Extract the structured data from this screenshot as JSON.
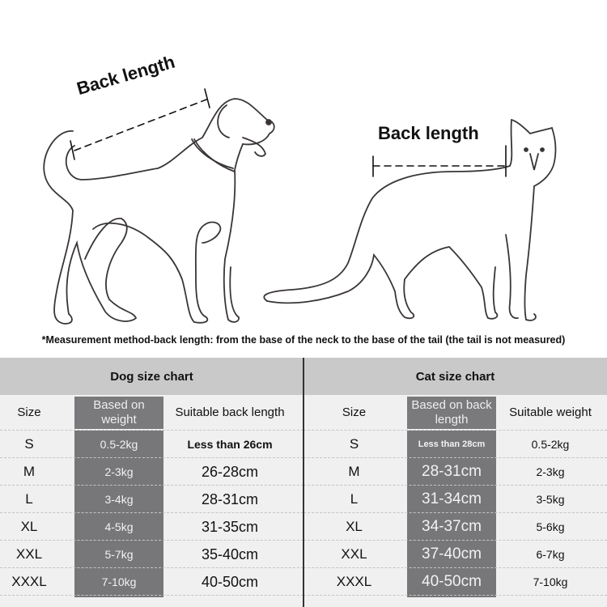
{
  "illustration": {
    "dog_label": "Back length",
    "cat_label": "Back length",
    "note": "*Measurement method-back length: from the base of the neck to the base of the tail (the tail is not measured)"
  },
  "colors": {
    "header_band": "#c9c9c9",
    "table_bg": "#f0f0f0",
    "highlight_column": "#77777a",
    "divider": "#333333"
  },
  "dog_chart": {
    "title": "Dog size chart",
    "headers": [
      "Size",
      "Based on weight",
      "Suitable back length"
    ],
    "rows": [
      [
        "S",
        "0.5-2kg",
        "Less than 26cm"
      ],
      [
        "M",
        "2-3kg",
        "26-28cm"
      ],
      [
        "L",
        "3-4kg",
        "28-31cm"
      ],
      [
        "XL",
        "4-5kg",
        "31-35cm"
      ],
      [
        "XXL",
        "5-7kg",
        "35-40cm"
      ],
      [
        "XXXL",
        "7-10kg",
        "40-50cm"
      ]
    ]
  },
  "cat_chart": {
    "title": "Cat size chart",
    "headers": [
      "Size",
      "Based on back length",
      "Suitable weight"
    ],
    "rows": [
      [
        "S",
        "Less than 28cm",
        "0.5-2kg"
      ],
      [
        "M",
        "28-31cm",
        "2-3kg"
      ],
      [
        "L",
        "31-34cm",
        "3-5kg"
      ],
      [
        "XL",
        "34-37cm",
        "5-6kg"
      ],
      [
        "XXL",
        "37-40cm",
        "6-7kg"
      ],
      [
        "XXXL",
        "40-50cm",
        "7-10kg"
      ]
    ]
  }
}
